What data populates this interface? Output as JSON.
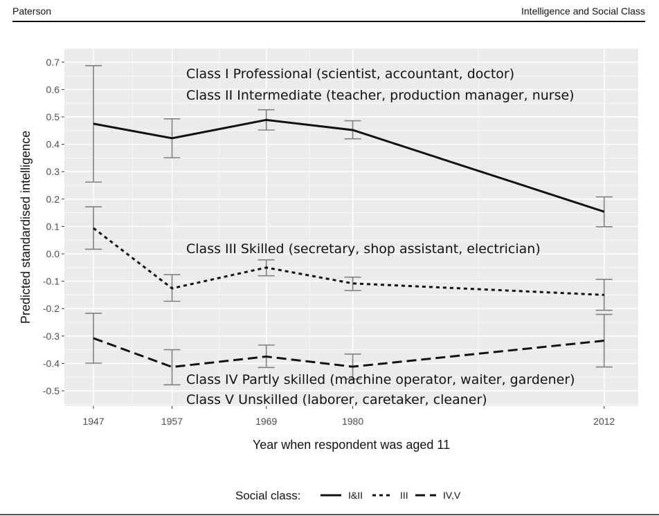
{
  "header": {
    "left": "Paterson",
    "right": "Intelligence and Social Class"
  },
  "chart_data": {
    "type": "line",
    "title": "",
    "xlabel": "Year when respondent was aged 11",
    "ylabel": "Predicted standardised intelligence",
    "x": [
      1947,
      1957,
      1969,
      1980,
      2012
    ],
    "x_tick_labels": [
      "1947",
      "1957",
      "1969",
      "1980",
      "2012"
    ],
    "xlim": [
      1945,
      2014
    ],
    "ylim": [
      -0.52,
      0.72
    ],
    "y_ticks": [
      -0.5,
      -0.4,
      -0.3,
      -0.2,
      -0.1,
      0.0,
      0.1,
      0.2,
      0.3,
      0.4,
      0.5,
      0.6,
      0.7
    ],
    "y_tick_labels": [
      "-0.5",
      "-0.4",
      "-0.3",
      "-0.2",
      "-0.1",
      "0.0",
      "0.1",
      "0.2",
      "0.3",
      "0.4",
      "0.5",
      "0.6",
      "0.7"
    ],
    "grid": true,
    "background": "#ebebeb",
    "error_bar_color": "#808080",
    "series": [
      {
        "name": "I&II",
        "linestyle": "solid",
        "values": [
          0.475,
          0.422,
          0.489,
          0.452,
          0.154
        ],
        "lower": [
          0.262,
          0.351,
          0.452,
          0.42,
          0.099
        ],
        "upper": [
          0.687,
          0.493,
          0.526,
          0.486,
          0.208
        ]
      },
      {
        "name": "III",
        "linestyle": "dotted",
        "values": [
          0.094,
          -0.126,
          -0.05,
          -0.108,
          -0.15
        ],
        "lower": [
          0.017,
          -0.173,
          -0.08,
          -0.134,
          -0.206
        ],
        "upper": [
          0.172,
          -0.076,
          -0.022,
          -0.085,
          -0.093
        ]
      },
      {
        "name": "IV,V",
        "linestyle": "dashed",
        "values": [
          -0.308,
          -0.413,
          -0.375,
          -0.412,
          -0.317
        ],
        "lower": [
          -0.399,
          -0.478,
          -0.415,
          -0.457,
          -0.413
        ],
        "upper": [
          -0.217,
          -0.35,
          -0.333,
          -0.366,
          -0.221
        ]
      }
    ],
    "annotations": [
      "Class I Professional (scientist, accountant, doctor)",
      "Class II Intermediate (teacher, production manager, nurse)",
      "Class III Skilled (secretary, shop assistant, electrician)",
      "Class IV Partly skilled (machine operator, waiter, gardener)",
      "Class V Unskilled (laborer, caretaker, cleaner)"
    ],
    "legend": {
      "title": "Social class:",
      "position": "bottom",
      "entries": [
        "I&II",
        "III",
        "IV,V"
      ]
    }
  }
}
